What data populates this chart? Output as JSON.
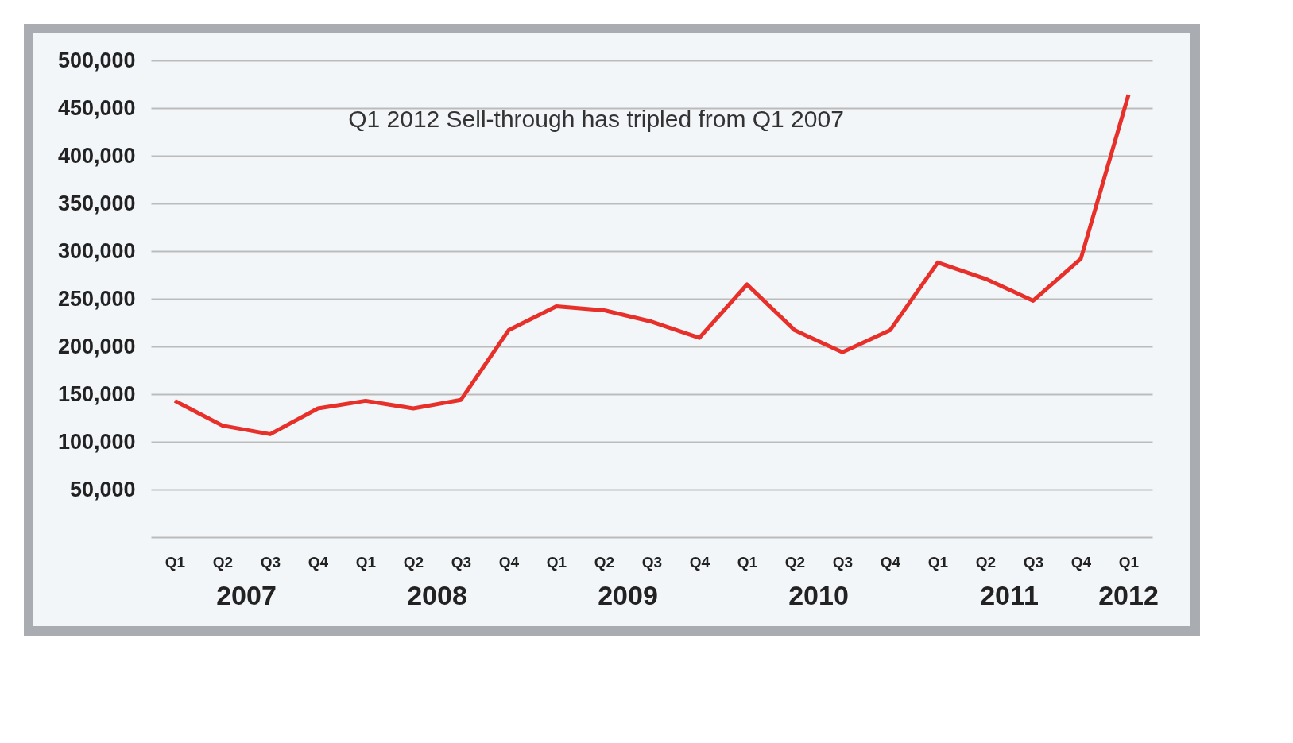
{
  "chart_data": {
    "type": "line",
    "annotations": [
      "Q1 2012 Sell-through has tripled from Q1 2007",
      "2007",
      "2008",
      "2009",
      "2010",
      "2011",
      "2012"
    ],
    "categories": [
      "Q1",
      "Q2",
      "Q3",
      "Q4",
      "Q1",
      "Q2",
      "Q3",
      "Q4",
      "Q1",
      "Q2",
      "Q3",
      "Q4",
      "Q1",
      "Q2",
      "Q3",
      "Q4",
      "Q1",
      "Q2",
      "Q3",
      "Q4",
      "Q1"
    ],
    "series": [
      {
        "color": "#e8302a",
        "values": [
          143000,
          117000,
          108000,
          135000,
          143000,
          135000,
          144000,
          217000,
          242000,
          238000,
          226000,
          209000,
          265000,
          217000,
          194000,
          217000,
          288000,
          271000,
          248000,
          292000,
          464000
        ]
      }
    ],
    "ylim": [
      0,
      500000
    ],
    "yticks": [
      {
        "value": 50000,
        "label": "50,000"
      },
      {
        "value": 100000,
        "label": "100,000"
      },
      {
        "value": 150000,
        "label": "150,000"
      },
      {
        "value": 200000,
        "label": "200,000"
      },
      {
        "value": 250000,
        "label": "250,000"
      },
      {
        "value": 300000,
        "label": "300,000"
      },
      {
        "value": 350000,
        "label": "350,000"
      },
      {
        "value": 400000,
        "label": "400,000"
      },
      {
        "value": 450000,
        "label": "450,000"
      },
      {
        "value": 500000,
        "label": "500,000"
      }
    ],
    "grid": "y",
    "marker": "none",
    "line_style": "solid"
  }
}
